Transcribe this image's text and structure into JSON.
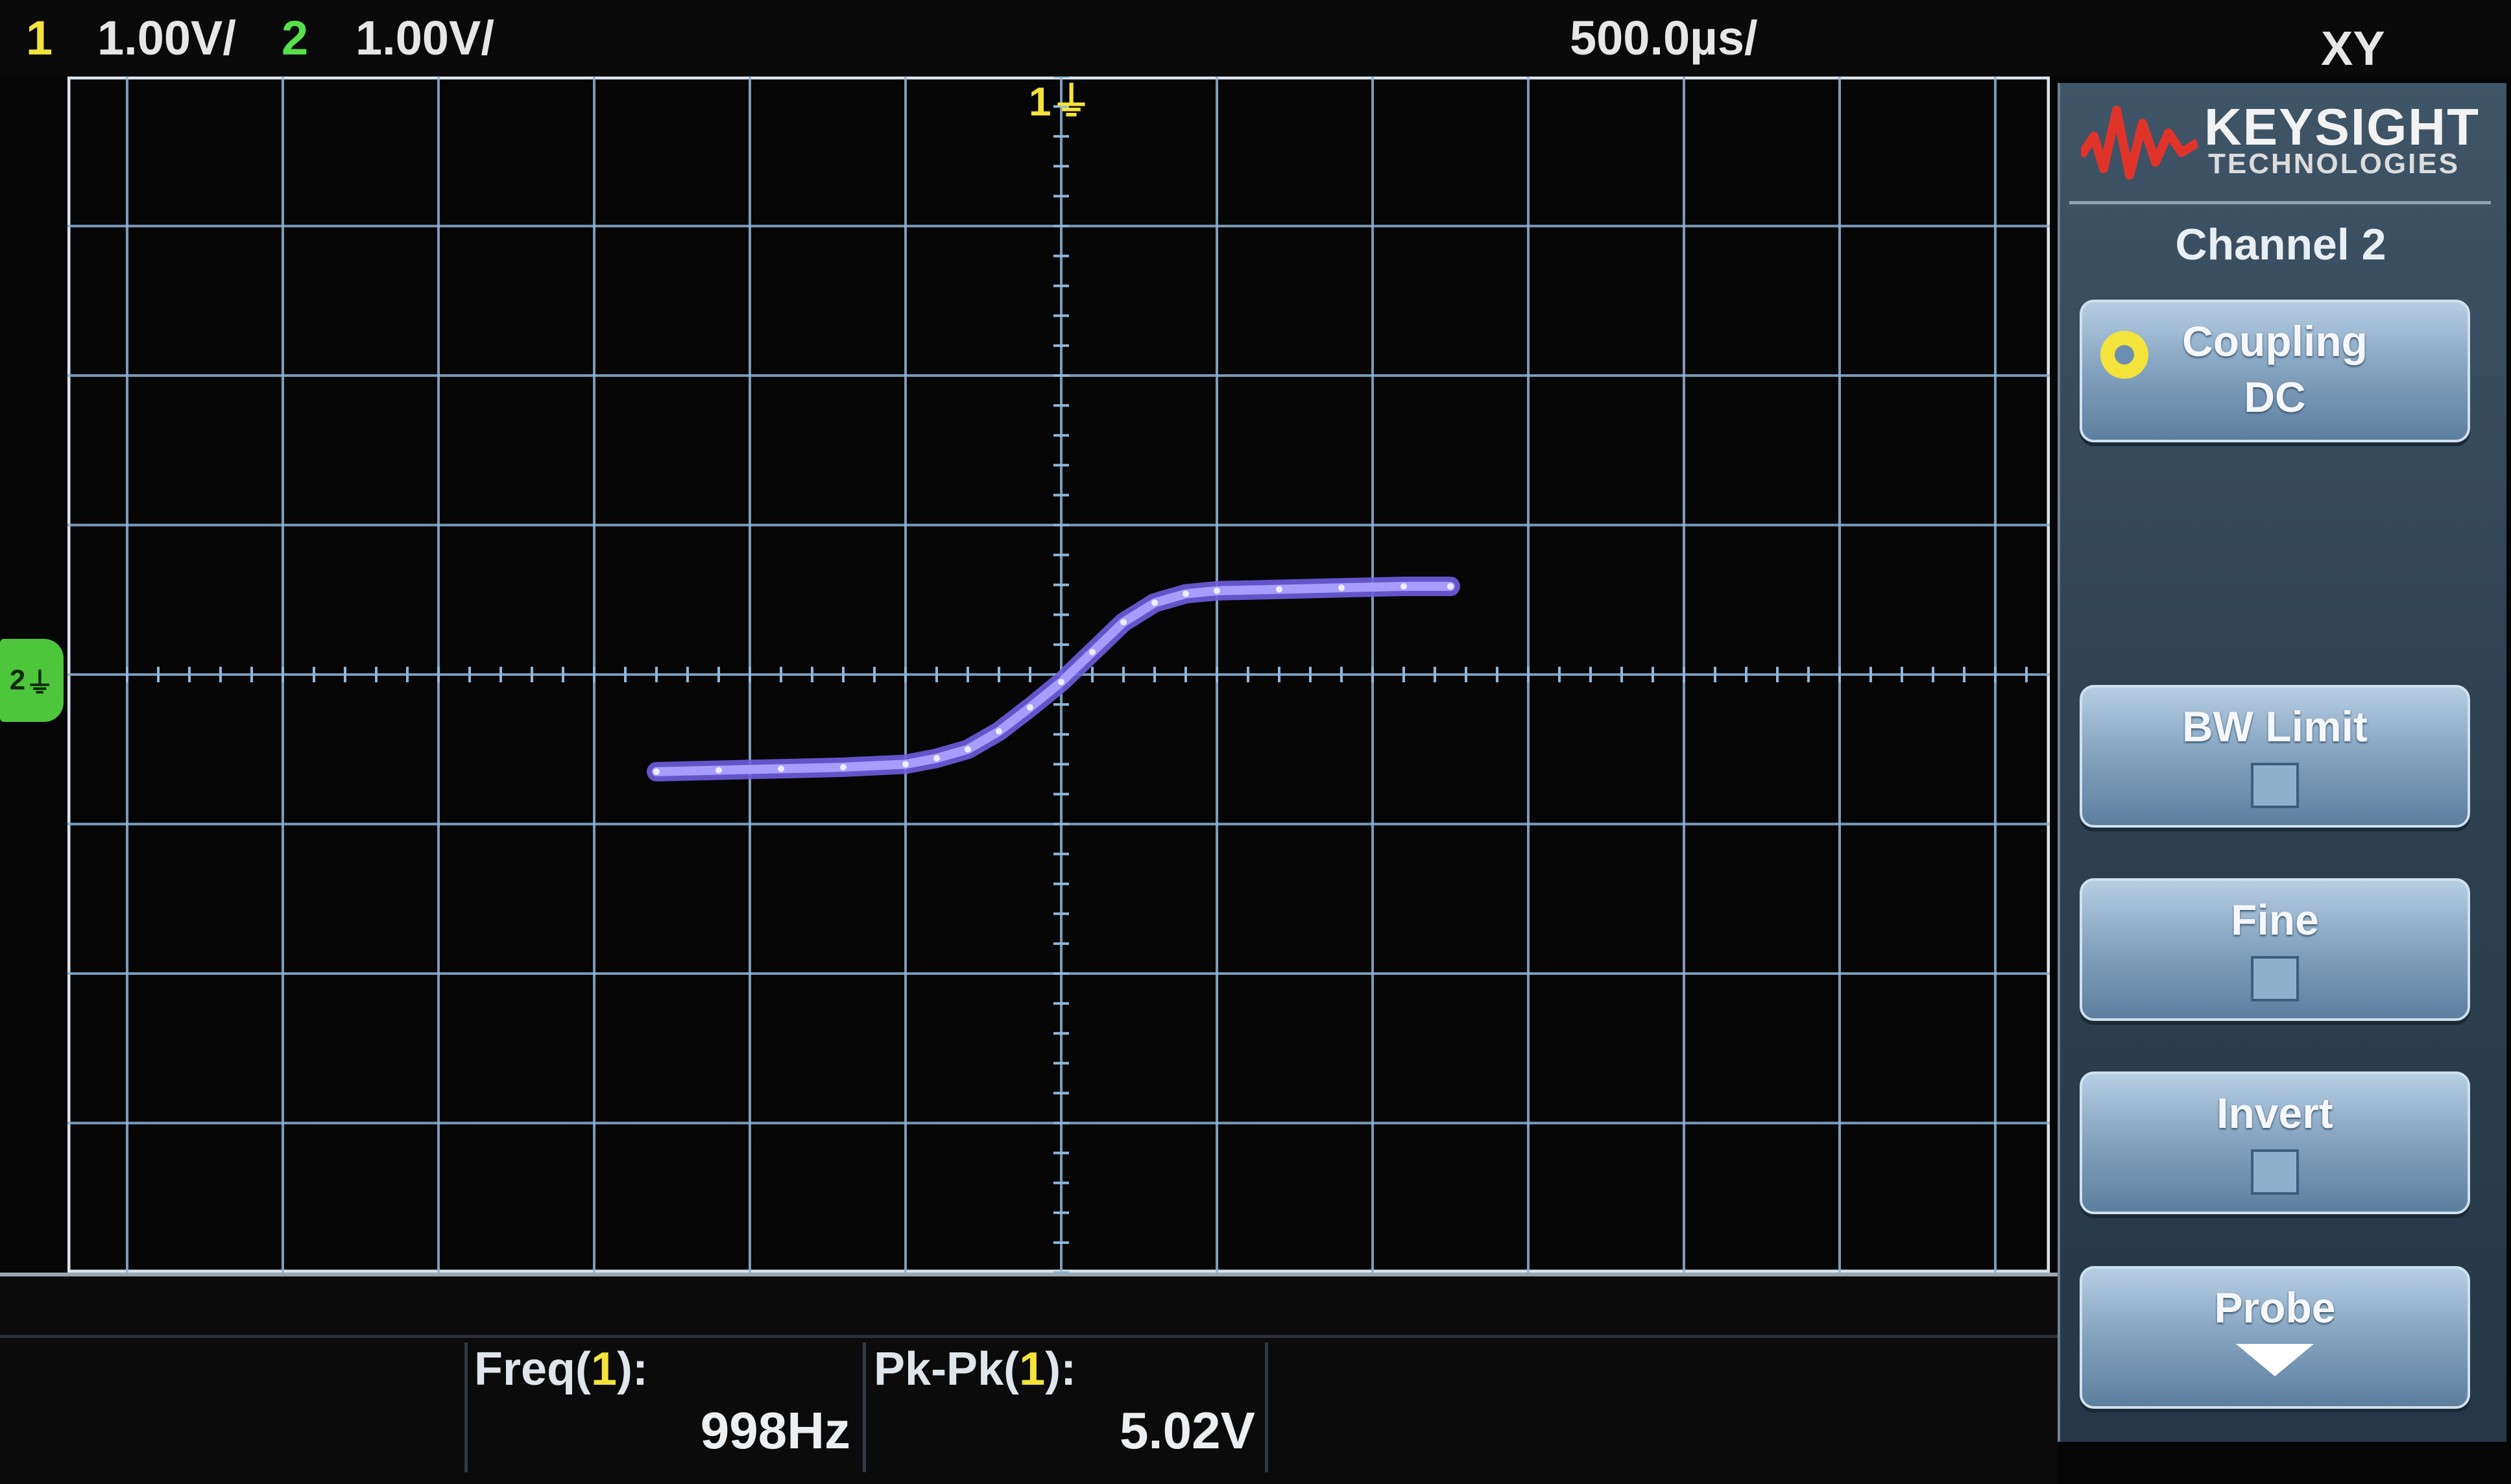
{
  "top_bar": {
    "ch1_number": "1",
    "ch1_scale": "1.00V/",
    "ch2_number": "2",
    "ch2_scale": "1.00V/",
    "timebase": "500.0µs/",
    "mode": "XY"
  },
  "markers": {
    "ch1_ground": "1",
    "ch2_ground": "2"
  },
  "brand": {
    "name": "KEYSIGHT",
    "sub": "TECHNOLOGIES"
  },
  "menu": {
    "title": "Channel 2",
    "coupling_label": "Coupling",
    "coupling_value": "DC",
    "bw_limit_label": "BW Limit",
    "bw_limit_checked": false,
    "fine_label": "Fine",
    "fine_checked": false,
    "invert_label": "Invert",
    "invert_checked": false,
    "probe_label": "Probe"
  },
  "measurements": {
    "freq_label_prefix": "Freq(",
    "freq_channel": "1",
    "freq_label_suffix": "):",
    "freq_value": "998Hz",
    "pkpk_label_prefix": "Pk-Pk(",
    "pkpk_channel": "1",
    "pkpk_label_suffix": "):",
    "pkpk_value": "5.02V"
  },
  "colors": {
    "ch1": "#f3e33a",
    "ch2": "#57e04a",
    "trace": "#a89cff",
    "grid": "#8fb6da"
  },
  "chart_data": {
    "type": "line",
    "x_divisions": 12.8,
    "y_divisions": 8,
    "x": [
      -2.6,
      -2.2,
      -1.8,
      -1.4,
      -1.0,
      -0.8,
      -0.6,
      -0.4,
      -0.2,
      0.0,
      0.2,
      0.4,
      0.6,
      0.8,
      1.0,
      1.4,
      1.8,
      2.2,
      2.5
    ],
    "y": [
      -0.65,
      -0.64,
      -0.63,
      -0.62,
      -0.6,
      -0.56,
      -0.5,
      -0.38,
      -0.22,
      -0.05,
      0.15,
      0.35,
      0.48,
      0.54,
      0.56,
      0.57,
      0.58,
      0.59,
      0.59
    ],
    "xlim": [
      -6.4,
      6.4
    ],
    "ylim": [
      -4,
      4
    ]
  }
}
